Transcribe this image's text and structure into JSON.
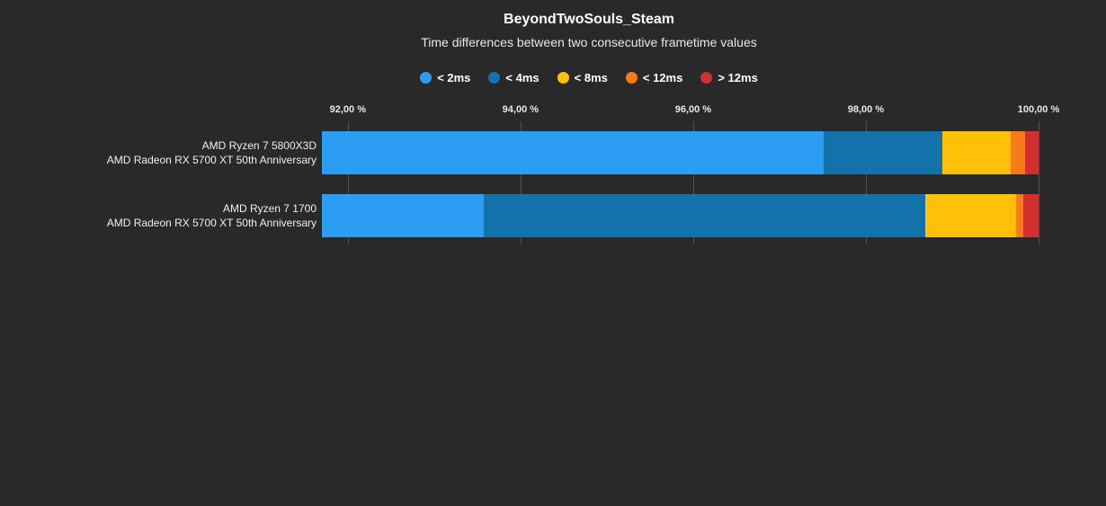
{
  "chart_data": {
    "type": "bar",
    "orientation": "horizontal-stacked",
    "title": "BeyondTwoSouls_Steam",
    "subtitle": "Time differences between two consecutive frametime values",
    "x_axis": {
      "min": 91.7,
      "max": 100,
      "unit": "%",
      "ticks": [
        92,
        94,
        96,
        98,
        100
      ],
      "tick_labels": [
        "92,00 %",
        "94,00 %",
        "96,00 %",
        "98,00 %",
        "100,00 %"
      ],
      "grid": true
    },
    "legend_position": "top-center",
    "legend": [
      {
        "label": "< 2ms",
        "color": "#2b9df2"
      },
      {
        "label": "< 4ms",
        "color": "#1372a9"
      },
      {
        "label": "< 8ms",
        "color": "#ffc107"
      },
      {
        "label": "< 12ms",
        "color": "#f57c17"
      },
      {
        "label": "> 12ms",
        "color": "#d32f2f"
      }
    ],
    "categories": [
      [
        "AMD Ryzen 7 5800X3D",
        "AMD Radeon RX 5700 XT 50th Anniversary"
      ],
      [
        "AMD Ryzen 7 1700",
        "AMD Radeon RX 5700 XT 50th Anniversary"
      ]
    ],
    "series": [
      {
        "name": "< 2ms",
        "values": [
          97.51,
          93.57
        ]
      },
      {
        "name": "< 4ms",
        "values": [
          1.38,
          5.12
        ]
      },
      {
        "name": "< 8ms",
        "values": [
          0.79,
          1.05
        ]
      },
      {
        "name": "< 12ms",
        "values": [
          0.16,
          0.08
        ]
      },
      {
        "name": "> 12ms",
        "values": [
          0.16,
          0.18
        ]
      }
    ],
    "colors": {
      "background": "#292929",
      "gridline": "#505050",
      "title_text": "#ffffff",
      "label_text": "#f0f0f0"
    }
  }
}
